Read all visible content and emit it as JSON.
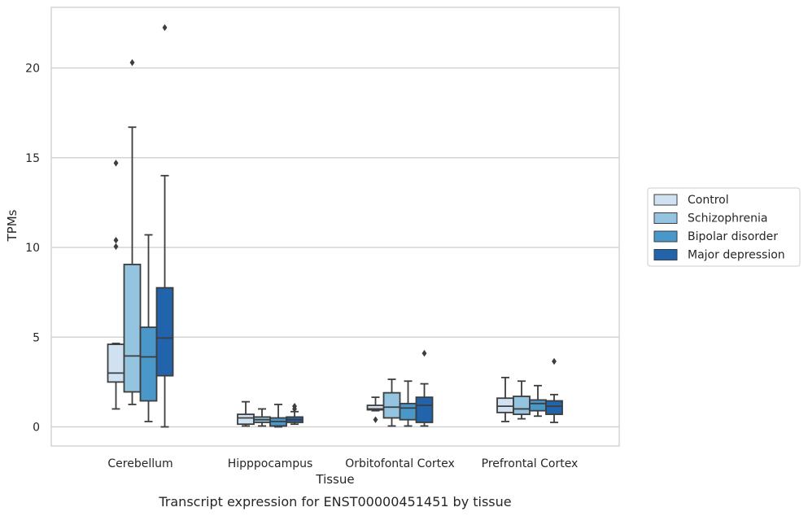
{
  "chart_data": {
    "type": "box",
    "title": "",
    "caption": "Transcript expression for ENST00000451451 by tissue",
    "xlabel": "Tissue",
    "ylabel": "TPMs",
    "ylim": [
      -1.05,
      23.3
    ],
    "yticks": [
      0,
      5,
      10,
      15,
      20
    ],
    "grid": "horizontal",
    "legend_position": "right",
    "categories": [
      "Cerebellum",
      "Hipppocampus",
      "Orbitofontal Cortex",
      "Prefrontal Cortex"
    ],
    "series": [
      {
        "name": "Control",
        "color": "#d0e1f2",
        "boxes": [
          {
            "whisker_low": 1.0,
            "q1": 2.5,
            "median": 3.0,
            "q3": 4.6,
            "whisker_high": 4.65,
            "outliers": [
              14.7,
              10.4,
              10.05
            ]
          },
          {
            "whisker_low": 0.05,
            "q1": 0.15,
            "median": 0.5,
            "q3": 0.7,
            "whisker_high": 1.4,
            "outliers": []
          },
          {
            "whisker_low": 0.9,
            "q1": 0.95,
            "median": 1.0,
            "q3": 1.2,
            "whisker_high": 1.65,
            "outliers": [
              0.4
            ]
          },
          {
            "whisker_low": 0.3,
            "q1": 0.8,
            "median": 1.15,
            "q3": 1.6,
            "whisker_high": 2.75,
            "outliers": []
          }
        ]
      },
      {
        "name": "Schizophrenia",
        "color": "#94c4df",
        "boxes": [
          {
            "whisker_low": 1.25,
            "q1": 1.95,
            "median": 3.95,
            "q3": 9.05,
            "whisker_high": 16.7,
            "outliers": [
              20.3
            ]
          },
          {
            "whisker_low": 0.05,
            "q1": 0.25,
            "median": 0.4,
            "q3": 0.55,
            "whisker_high": 1.0,
            "outliers": []
          },
          {
            "whisker_low": 0.05,
            "q1": 0.5,
            "median": 1.1,
            "q3": 1.9,
            "whisker_high": 2.65,
            "outliers": []
          },
          {
            "whisker_low": 0.45,
            "q1": 0.7,
            "median": 1.0,
            "q3": 1.7,
            "whisker_high": 2.55,
            "outliers": []
          }
        ]
      },
      {
        "name": "Bipolar disorder",
        "color": "#4a98c9",
        "boxes": [
          {
            "whisker_low": 0.3,
            "q1": 1.45,
            "median": 3.9,
            "q3": 5.55,
            "whisker_high": 10.7,
            "outliers": []
          },
          {
            "whisker_low": 0.0,
            "q1": 0.05,
            "median": 0.3,
            "q3": 0.5,
            "whisker_high": 1.25,
            "outliers": []
          },
          {
            "whisker_low": 0.05,
            "q1": 0.4,
            "median": 1.05,
            "q3": 1.3,
            "whisker_high": 2.55,
            "outliers": []
          },
          {
            "whisker_low": 0.6,
            "q1": 0.9,
            "median": 1.3,
            "q3": 1.5,
            "whisker_high": 2.3,
            "outliers": []
          }
        ]
      },
      {
        "name": "Major depression",
        "color": "#2164ab",
        "boxes": [
          {
            "whisker_low": 0.0,
            "q1": 2.85,
            "median": 4.95,
            "q3": 7.75,
            "whisker_high": 14.0,
            "outliers": [
              22.25
            ]
          },
          {
            "whisker_low": 0.15,
            "q1": 0.25,
            "median": 0.4,
            "q3": 0.55,
            "whisker_high": 0.85,
            "outliers": [
              1.0,
              1.15
            ]
          },
          {
            "whisker_low": 0.05,
            "q1": 0.25,
            "median": 1.2,
            "q3": 1.65,
            "whisker_high": 2.4,
            "outliers": [
              4.1
            ]
          },
          {
            "whisker_low": 0.25,
            "q1": 0.7,
            "median": 1.15,
            "q3": 1.45,
            "whisker_high": 1.8,
            "outliers": [
              3.65
            ]
          }
        ]
      }
    ]
  }
}
